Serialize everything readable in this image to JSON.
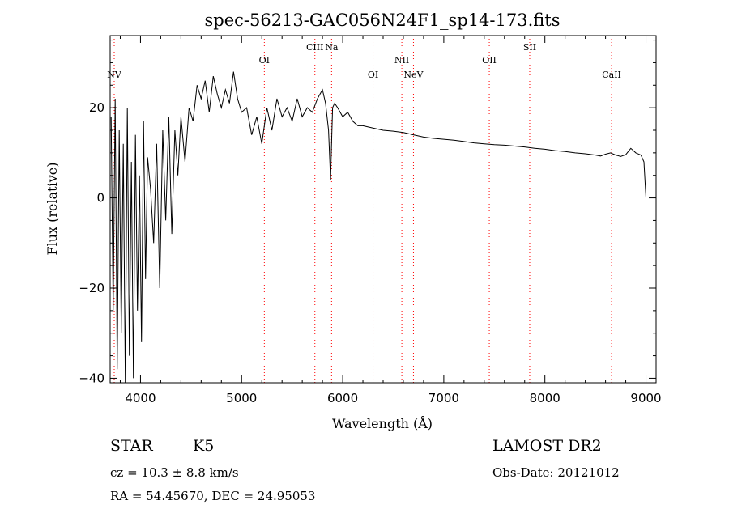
{
  "chart_data": {
    "type": "line",
    "title": "spec-56213-GAC056N24F1_sp14-173.fits",
    "xlabel": "Wavelength (Å)",
    "ylabel": "Flux (relative)",
    "xlim": [
      3700,
      9100
    ],
    "ylim": [
      -41,
      36
    ],
    "xticks": [
      4000,
      5000,
      6000,
      7000,
      8000,
      9000
    ],
    "yticks": [
      -40,
      -20,
      0,
      20
    ],
    "ytick_labels": [
      "−40",
      "−20",
      "0",
      "20"
    ],
    "grid": false,
    "series": [
      {
        "x": [
          3710,
          3730,
          3750,
          3770,
          3790,
          3810,
          3830,
          3850,
          3870,
          3890,
          3910,
          3930,
          3950,
          3970,
          3990,
          4010,
          4030,
          4050,
          4070,
          4100,
          4130,
          4160,
          4190,
          4220,
          4250,
          4280,
          4310,
          4340,
          4370,
          4400,
          4440,
          4480,
          4520,
          4560,
          4600,
          4640,
          4680,
          4720,
          4760,
          4800,
          4840,
          4880,
          4920,
          4960,
          5000,
          5050,
          5100,
          5150,
          5200,
          5250,
          5300,
          5350,
          5400,
          5450,
          5500,
          5550,
          5600,
          5650,
          5700,
          5750,
          5800,
          5830,
          5860,
          5880,
          5890,
          5900,
          5920,
          5950,
          6000,
          6050,
          6100,
          6150,
          6200,
          6300,
          6400,
          6500,
          6600,
          6700,
          6800,
          6900,
          7000,
          7100,
          7200,
          7300,
          7400,
          7500,
          7600,
          7700,
          7800,
          7900,
          8000,
          8100,
          8200,
          8300,
          8400,
          8500,
          8550,
          8600,
          8650,
          8700,
          8750,
          8800,
          8850,
          8900,
          8950,
          8980,
          9000
        ],
        "y": [
          18,
          -25,
          22,
          -38,
          15,
          -30,
          12,
          -41,
          20,
          -35,
          8,
          -40,
          14,
          -25,
          5,
          -32,
          17,
          -18,
          9,
          2,
          -10,
          12,
          -20,
          15,
          -5,
          18,
          -8,
          15,
          5,
          18,
          8,
          20,
          17,
          25,
          22,
          26,
          19,
          27,
          23,
          20,
          24,
          21,
          28,
          22,
          19,
          20,
          14,
          18,
          12,
          20,
          15,
          22,
          18,
          20,
          17,
          22,
          18,
          20,
          19,
          22,
          24,
          21,
          15,
          4,
          12,
          20,
          21,
          20,
          18,
          19,
          17,
          16,
          16,
          15.5,
          15,
          14.8,
          14.5,
          14,
          13.5,
          13.2,
          13,
          12.8,
          12.5,
          12.2,
          12,
          11.8,
          11.7,
          11.5,
          11.3,
          11,
          10.8,
          10.5,
          10.3,
          10,
          9.8,
          9.5,
          9.3,
          9.7,
          10,
          9.5,
          9.2,
          9.6,
          11,
          10,
          9.5,
          8,
          0
        ]
      }
    ],
    "lines": [
      {
        "label": "NV",
        "x": 3740,
        "level": 0
      },
      {
        "label": "OI",
        "x": 5225,
        "level": 1
      },
      {
        "label": "CIII",
        "x": 5725,
        "level": 2
      },
      {
        "label": "Na",
        "x": 5890,
        "level": 2
      },
      {
        "label": "OI",
        "x": 6300,
        "level": 0
      },
      {
        "label": "NII",
        "x": 6585,
        "level": 1
      },
      {
        "label": "NeV",
        "x": 6700,
        "level": 0
      },
      {
        "label": "OII",
        "x": 7450,
        "level": 1
      },
      {
        "label": "SII",
        "x": 7850,
        "level": 2
      },
      {
        "label": "CaII",
        "x": 8660,
        "level": 0
      }
    ],
    "line_color": "#ff0000"
  },
  "info": {
    "object_type": "STAR",
    "subclass": "K5",
    "survey": "LAMOST DR2",
    "cz": "cz = 10.3 ± 8.8 km/s",
    "obs_date": "Obs-Date: 20121012",
    "coords": "RA =  54.45670, DEC =  24.95053"
  }
}
